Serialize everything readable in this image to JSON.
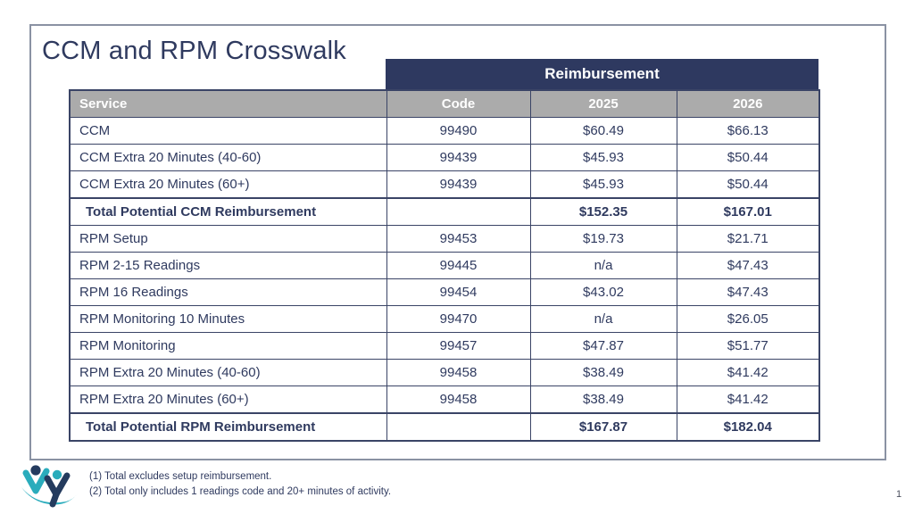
{
  "title": "CCM and RPM Crosswalk",
  "page_number": "1",
  "table": {
    "banner": "Reimbursement",
    "headers": [
      "Service",
      "Code",
      "2025",
      "2026"
    ],
    "rows": [
      {
        "service": "CCM",
        "code": "99490",
        "y2025": "$60.49",
        "y2026": "$66.13",
        "total": false
      },
      {
        "service": "CCM Extra 20 Minutes (40-60)",
        "code": "99439",
        "y2025": "$45.93",
        "y2026": "$50.44",
        "total": false
      },
      {
        "service": "CCM Extra 20 Minutes (60+)",
        "code": "99439",
        "y2025": "$45.93",
        "y2026": "$50.44",
        "total": false
      },
      {
        "service": "Total Potential CCM Reimbursement",
        "code": "",
        "y2025": "$152.35",
        "y2026": "$167.01",
        "total": true
      },
      {
        "service": "RPM Setup",
        "code": "99453",
        "y2025": "$19.73",
        "y2026": "$21.71",
        "total": false
      },
      {
        "service": "RPM 2-15 Readings",
        "code": "99445",
        "y2025": "n/a",
        "y2026": "$47.43",
        "total": false
      },
      {
        "service": "RPM 16 Readings",
        "code": "99454",
        "y2025": "$43.02",
        "y2026": "$47.43",
        "total": false
      },
      {
        "service": "RPM Monitoring 10 Minutes",
        "code": "99470",
        "y2025": "n/a",
        "y2026": "$26.05",
        "total": false
      },
      {
        "service": "RPM Monitoring",
        "code": "99457",
        "y2025": "$47.87",
        "y2026": "$51.77",
        "total": false
      },
      {
        "service": "RPM Extra 20 Minutes (40-60)",
        "code": "99458",
        "y2025": "$38.49",
        "y2026": "$41.42",
        "total": false
      },
      {
        "service": "RPM Extra 20 Minutes (60+)",
        "code": "99458",
        "y2025": "$38.49",
        "y2026": "$41.42",
        "total": false
      },
      {
        "service": "Total Potential RPM Reimbursement",
        "code": "",
        "y2025": "$167.87",
        "y2026": "$182.04",
        "total": true
      }
    ]
  },
  "footnotes": [
    "(1)  Total excludes setup reimbursement.",
    "(2)  Total only includes 1 readings code and 20+ minutes of activity."
  ],
  "colors": {
    "banner_navy": "#2E3960",
    "header_gray": "#ABABAB",
    "table_border_navy": "#3A4466",
    "text_navy": "#2F3A5F",
    "outer_border_gray": "#8A92A3",
    "logo_teal": "#2AACBC",
    "logo_navy": "#243B5E"
  }
}
